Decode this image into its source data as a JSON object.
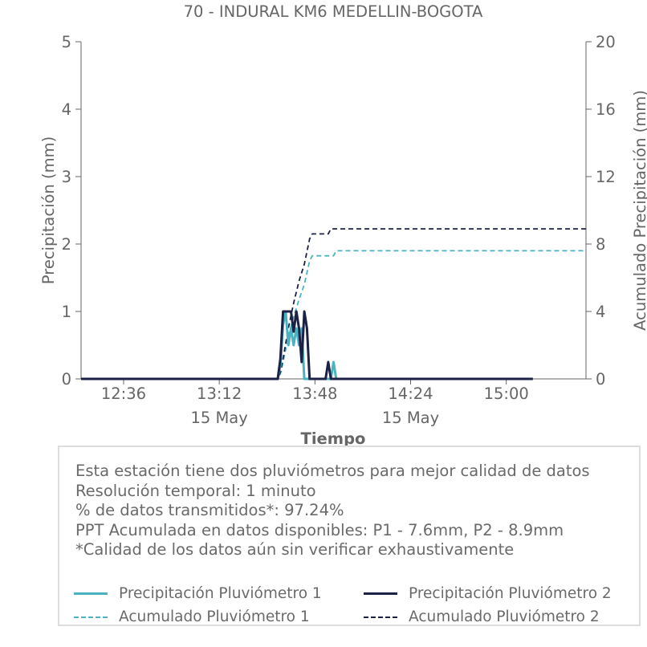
{
  "chart_data": {
    "type": "line",
    "title": "70 - INDURAL KM6 MEDELLIN-BOGOTA",
    "xlabel": "Tiempo",
    "ylabel_left": "Precipitación (mm)",
    "ylabel_right": "Acumulado Precipitación (mm)",
    "x_range": [
      "12:20",
      "15:30"
    ],
    "x_ticks": [
      {
        "time": "12:36",
        "label": "12:36",
        "sublabel": ""
      },
      {
        "time": "13:12",
        "label": "13:12",
        "sublabel": "15 May"
      },
      {
        "time": "13:48",
        "label": "13:48",
        "sublabel": ""
      },
      {
        "time": "14:24",
        "label": "14:24",
        "sublabel": "15 May"
      },
      {
        "time": "15:00",
        "label": "15:00",
        "sublabel": ""
      }
    ],
    "ylim_left": [
      0,
      5
    ],
    "yticks_left": [
      "0",
      "1",
      "2",
      "3",
      "4",
      "5"
    ],
    "ylim_right": [
      0,
      20
    ],
    "yticks_right": [
      "0",
      "4",
      "8",
      "12",
      "16",
      "20"
    ],
    "grid": false,
    "series": [
      {
        "name": "Precipitación Pluviómetro 1",
        "axis": "left",
        "style": "solid",
        "color": "#4bb3bf",
        "points": [
          [
            "12:20",
            0
          ],
          [
            "13:34",
            0
          ],
          [
            "13:35",
            0.2
          ],
          [
            "13:36",
            0.8
          ],
          [
            "13:37",
            1.0
          ],
          [
            "13:38",
            0.5
          ],
          [
            "13:39",
            0.75
          ],
          [
            "13:40",
            0.5
          ],
          [
            "13:41",
            0.75
          ],
          [
            "13:42",
            0.5
          ],
          [
            "13:43",
            0.75
          ],
          [
            "13:44",
            0
          ],
          [
            "13:54",
            0
          ],
          [
            "13:55",
            0.25
          ],
          [
            "13:56",
            0
          ],
          [
            "15:10",
            0
          ]
        ]
      },
      {
        "name": "Precipitación Pluviómetro 2",
        "axis": "left",
        "style": "solid",
        "color": "#1b2245",
        "points": [
          [
            "12:20",
            0
          ],
          [
            "13:34",
            0
          ],
          [
            "13:35",
            0.3
          ],
          [
            "13:36",
            1.0
          ],
          [
            "13:39",
            1.0
          ],
          [
            "13:40",
            0.7
          ],
          [
            "13:41",
            1.0
          ],
          [
            "13:42",
            0.75
          ],
          [
            "13:43",
            0.25
          ],
          [
            "13:44",
            1.0
          ],
          [
            "13:45",
            0.75
          ],
          [
            "13:46",
            0
          ],
          [
            "13:52",
            0
          ],
          [
            "13:53",
            0.25
          ],
          [
            "13:54",
            0
          ],
          [
            "15:10",
            0
          ]
        ]
      },
      {
        "name": "Acumulado Pluviómetro 1",
        "axis": "right",
        "style": "dashed",
        "color": "#4bb3bf",
        "points": [
          [
            "12:20",
            0
          ],
          [
            "13:34",
            0
          ],
          [
            "13:35",
            0.3
          ],
          [
            "13:36",
            1.0
          ],
          [
            "13:38",
            2.5
          ],
          [
            "13:40",
            3.7
          ],
          [
            "13:42",
            4.7
          ],
          [
            "13:44",
            5.6
          ],
          [
            "13:46",
            7.0
          ],
          [
            "13:47",
            7.3
          ],
          [
            "13:55",
            7.3
          ],
          [
            "13:56",
            7.6
          ],
          [
            "15:30",
            7.6
          ]
        ]
      },
      {
        "name": "Acumulado Pluviómetro 2",
        "axis": "right",
        "style": "dashed",
        "color": "#1b2245",
        "points": [
          [
            "12:20",
            0
          ],
          [
            "13:34",
            0
          ],
          [
            "13:35",
            0.4
          ],
          [
            "13:36",
            1.2
          ],
          [
            "13:38",
            3.0
          ],
          [
            "13:40",
            4.5
          ],
          [
            "13:42",
            5.8
          ],
          [
            "13:44",
            6.8
          ],
          [
            "13:46",
            8.3
          ],
          [
            "13:47",
            8.6
          ],
          [
            "13:53",
            8.6
          ],
          [
            "13:54",
            8.9
          ],
          [
            "15:30",
            8.9
          ]
        ]
      }
    ],
    "legend_position": "bottom"
  },
  "info": {
    "lines": [
      "Esta estación tiene dos pluviómetros para mejor calidad de datos",
      "Resolución temporal: 1 minuto",
      "% de datos transmitidos*: 97.24%",
      "PPT Acumulada en datos disponibles: P1 - 7.6mm, P2 - 8.9mm",
      "*Calidad de los datos aún sin verificar exhaustivamente"
    ]
  },
  "legend": {
    "items": [
      {
        "label": "Precipitación Pluviómetro 1",
        "color": "#4bb3bf",
        "style": "solid"
      },
      {
        "label": "Precipitación Pluviómetro 2",
        "color": "#1b2245",
        "style": "solid"
      },
      {
        "label": "Acumulado Pluviómetro 1",
        "color": "#4bb3bf",
        "style": "dashed"
      },
      {
        "label": "Acumulado Pluviómetro 2",
        "color": "#1b2245",
        "style": "dashed"
      }
    ]
  }
}
